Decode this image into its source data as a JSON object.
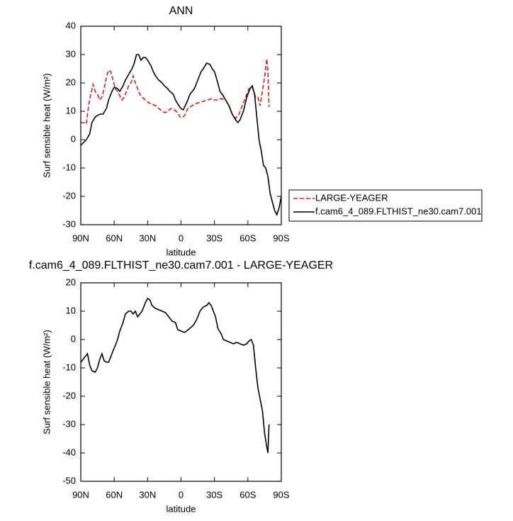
{
  "chart_data": [
    {
      "type": "line",
      "title": "ANN",
      "x_label": "latitude",
      "y_label": "Surf sensible heat (W/m²)",
      "xlim": [
        90,
        -90
      ],
      "ylim": [
        -30,
        40
      ],
      "xticks": [
        {
          "value": 90,
          "label": "90N"
        },
        {
          "value": 60,
          "label": "60N"
        },
        {
          "value": 30,
          "label": "30N"
        },
        0,
        {
          "value": -30,
          "label": "30S"
        },
        {
          "value": -60,
          "label": "60S"
        },
        {
          "value": -90,
          "label": "90S"
        }
      ],
      "yticks": [
        -30,
        -20,
        -10,
        0,
        10,
        20,
        30,
        40
      ],
      "legend": "outside-right",
      "series": [
        {
          "name": "LARGE-YEAGER",
          "color": "#e41a1c",
          "dash": "dashed",
          "x": [
            90,
            87,
            85,
            83,
            81,
            79,
            77,
            75,
            73,
            71,
            69,
            67,
            65,
            63,
            61,
            59,
            57,
            55,
            53,
            51,
            49,
            47,
            45,
            43,
            41,
            39,
            37,
            35,
            32,
            29,
            26,
            23,
            20,
            17,
            14,
            12,
            9,
            6,
            3,
            1,
            -2,
            -4,
            -6,
            -10,
            -15,
            -20,
            -24,
            -28,
            -30,
            -33,
            -36,
            -40,
            -43,
            -46,
            -49,
            -52,
            -55,
            -58,
            -61,
            -64,
            -67,
            -69,
            -71,
            -73,
            -75,
            -77,
            -78,
            -79
          ],
          "values": [
            6,
            6,
            5.5,
            12,
            16,
            19.5,
            17,
            16,
            14,
            15,
            18,
            22,
            24.5,
            24,
            21,
            18,
            17,
            15.5,
            14,
            15,
            17,
            19,
            20,
            22.5,
            20,
            18,
            16,
            15,
            14,
            13,
            12.5,
            12,
            11,
            10,
            9.5,
            10,
            11,
            10.5,
            9.5,
            8,
            8,
            9,
            11,
            12,
            13,
            13.5,
            14,
            14.5,
            14,
            14,
            14.5,
            14,
            12,
            9,
            7.5,
            9,
            12,
            15,
            18,
            18.5,
            15,
            15,
            12,
            17,
            22,
            28.5,
            24,
            11.5
          ]
        },
        {
          "name": "f.cam6_4_089.FLTHIST_ne30.cam7.001",
          "color": "#000000",
          "dash": "solid",
          "x": [
            90,
            85,
            82,
            80,
            77,
            73,
            70,
            67,
            65,
            62,
            60,
            57,
            55,
            52,
            50,
            47,
            44,
            42,
            40,
            38,
            36,
            34,
            32,
            30,
            27,
            25,
            22,
            20,
            17,
            15,
            12,
            10,
            7,
            5,
            2,
            0,
            -2,
            -5,
            -8,
            -12,
            -15,
            -18,
            -20,
            -23,
            -26,
            -28,
            -30,
            -33,
            -35,
            -37,
            -40,
            -43,
            -46,
            -49,
            -51,
            -53,
            -56,
            -59,
            -62,
            -64,
            -66,
            -68,
            -70,
            -72,
            -74,
            -76,
            -78,
            -80,
            -82,
            -84,
            -86,
            -88,
            -90
          ],
          "values": [
            -2,
            0,
            2,
            6,
            8,
            9,
            9,
            11,
            14,
            17,
            18.5,
            18,
            17,
            19,
            21,
            23,
            25,
            27,
            30,
            30,
            28,
            29,
            29,
            28,
            26,
            24,
            22,
            21,
            20,
            19,
            18,
            17,
            16,
            14,
            12,
            11,
            10.5,
            13,
            16,
            18,
            21,
            24,
            25,
            27,
            26.5,
            25,
            24,
            20,
            17,
            16,
            14,
            12,
            9,
            7,
            6,
            7,
            10,
            15,
            18,
            19,
            16,
            8,
            0,
            -4,
            -9,
            -10,
            -13,
            -19,
            -22,
            -25,
            -26.5,
            -24,
            -20
          ]
        }
      ]
    },
    {
      "type": "line",
      "title": "f.cam6_4_089.FLTHIST_ne30.cam7.001 - LARGE-YEAGER",
      "x_label": "latitude",
      "y_label": "Surf sensible heat (W/m²)",
      "xlim": [
        90,
        -90
      ],
      "ylim": [
        -50,
        20
      ],
      "xticks": [
        {
          "value": 90,
          "label": "90N"
        },
        {
          "value": 60,
          "label": "60N"
        },
        {
          "value": 30,
          "label": "30N"
        },
        0,
        {
          "value": -30,
          "label": "30S"
        },
        {
          "value": -60,
          "label": "60S"
        },
        {
          "value": -90,
          "label": "90S"
        }
      ],
      "yticks": [
        -50,
        -40,
        -30,
        -20,
        -10,
        0,
        10,
        20
      ],
      "series": [
        {
          "color": "#000000",
          "dash": "solid",
          "x": [
            90,
            87,
            84,
            82,
            80,
            77,
            75,
            73,
            71,
            69,
            67,
            65,
            63,
            60,
            57,
            55,
            52,
            50,
            47,
            45,
            43,
            41,
            39,
            37,
            35,
            32,
            30,
            28,
            26,
            23,
            20,
            17,
            14,
            11,
            8,
            5,
            3,
            0,
            -3,
            -5,
            -8,
            -11,
            -14,
            -17,
            -20,
            -23,
            -25,
            -27,
            -29,
            -31,
            -33,
            -36,
            -38,
            -41,
            -44,
            -47,
            -50,
            -53,
            -56,
            -59,
            -61,
            -63,
            -65,
            -67,
            -69,
            -71,
            -73,
            -75,
            -77,
            -78,
            -79
          ],
          "values": [
            -8,
            -6.5,
            -5,
            -9,
            -11,
            -11.5,
            -10,
            -7,
            -5,
            -7.5,
            -8,
            -8,
            -6,
            -3,
            0,
            3,
            6,
            9,
            10,
            10,
            9,
            10,
            8,
            9,
            10,
            13,
            14.5,
            14,
            12,
            11,
            10.5,
            10,
            9.5,
            8,
            6.5,
            6,
            3.5,
            3,
            2.5,
            3,
            4,
            5,
            7,
            10,
            11.5,
            12,
            13,
            12,
            10,
            8,
            4,
            2,
            0,
            -0.5,
            -1,
            -1.5,
            -1,
            -1.5,
            -2,
            -1.5,
            -0.5,
            0,
            -2,
            -10,
            -17,
            -21,
            -25,
            -33,
            -38,
            -40,
            -30
          ]
        }
      ]
    }
  ]
}
